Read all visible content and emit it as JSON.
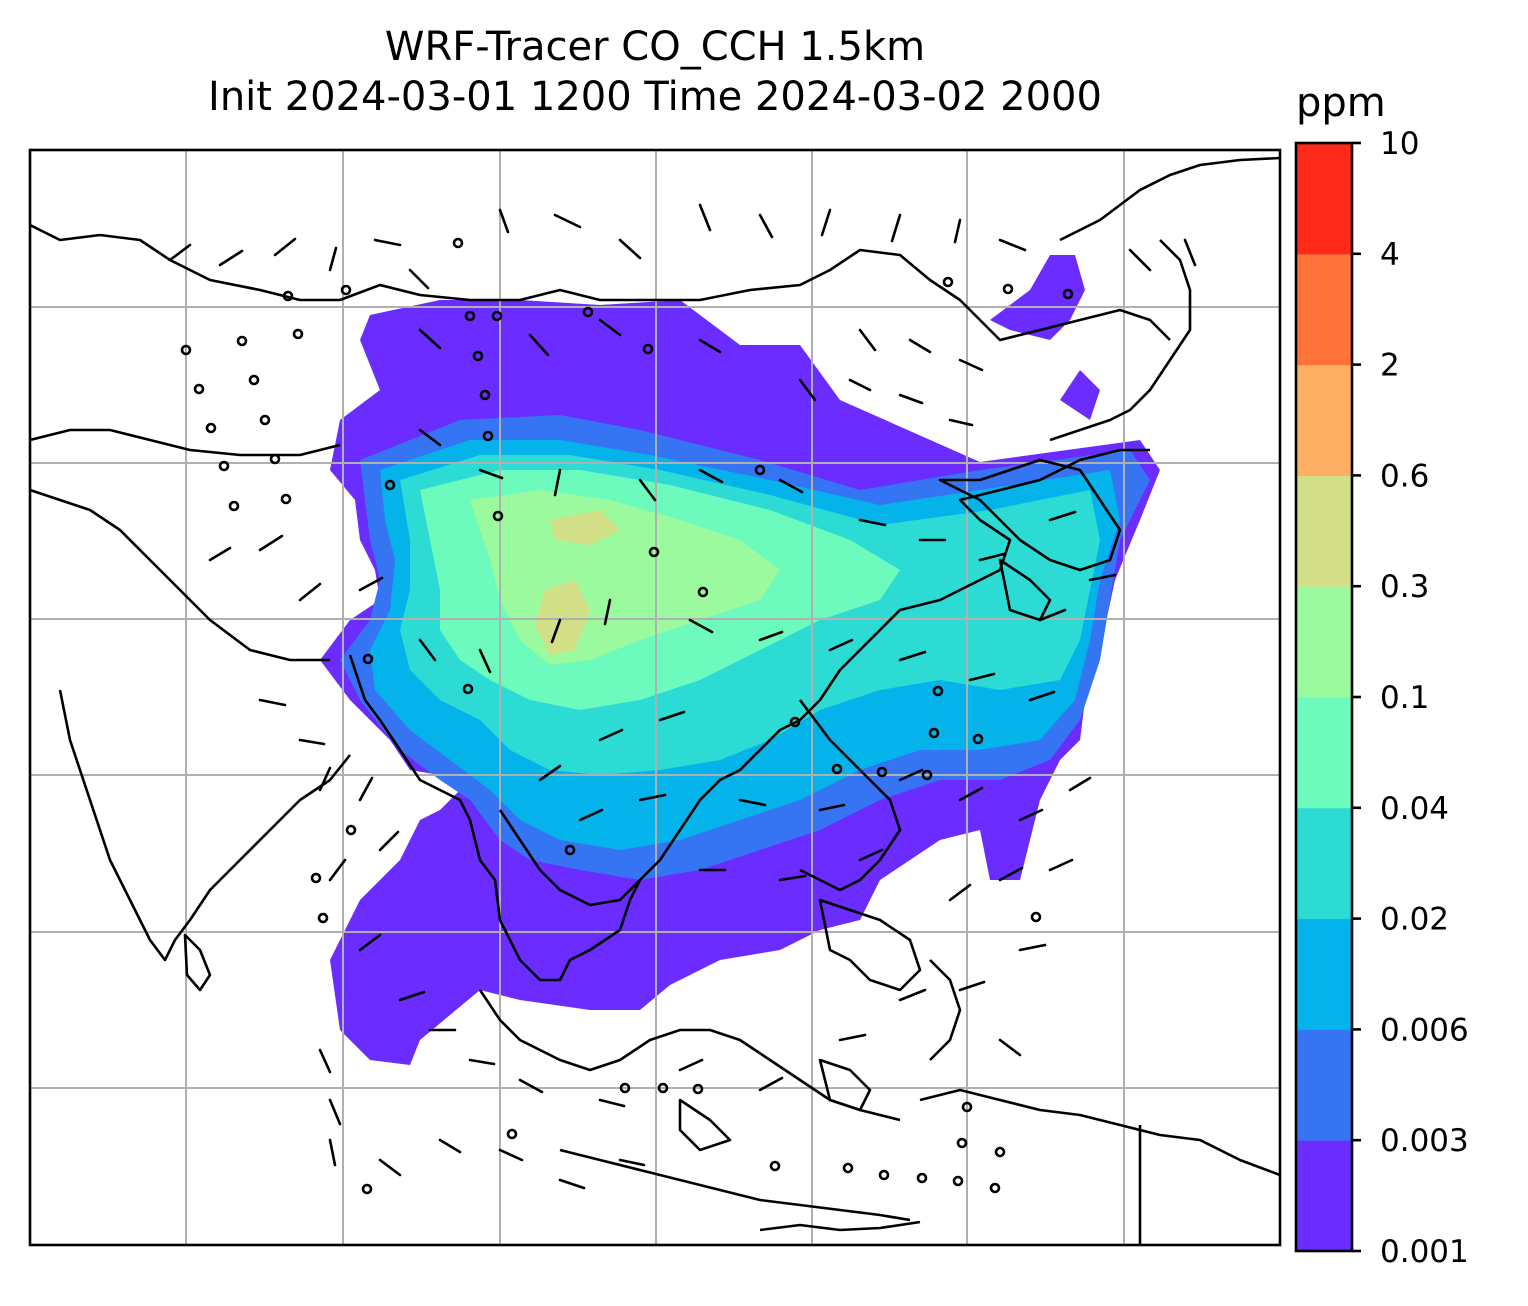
{
  "title": {
    "line1": "WRF-Tracer CO_CCH 1.5km",
    "line2": "Init 2024-03-01 1200 Time 2024-03-02 2000"
  },
  "colorbar": {
    "unit": "ppm",
    "levels": [
      "0.001",
      "0.003",
      "0.006",
      "0.02",
      "0.04",
      "0.1",
      "0.3",
      "0.6",
      "2",
      "4",
      "10"
    ],
    "colors": [
      "#6a2cff",
      "#3574f3",
      "#04b3e9",
      "#2ddbd5",
      "#6cfbbd",
      "#9cfa9e",
      "#d2df86",
      "#ffaf63",
      "#ff7239",
      "#ff2a1a"
    ]
  },
  "map": {
    "gridlines": true,
    "coastline_color": "#000000",
    "grid_color": "#b0b0b0",
    "vectors": "wind-barbs"
  }
}
